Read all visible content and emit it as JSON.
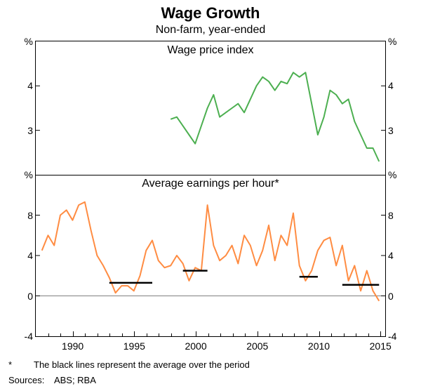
{
  "title": "Wage Growth",
  "subtitle": "Non-farm, year-ended",
  "footnote_marker": "*",
  "footnote_text": "The black lines represent the average over the period",
  "sources_label": "Sources:",
  "sources_value": "ABS; RBA",
  "x_axis": {
    "min": 1987,
    "max": 2015.5,
    "ticks": [
      1990,
      1995,
      2000,
      2005,
      2010,
      2015
    ]
  },
  "panels": {
    "top": {
      "title": "Wage price index",
      "unit": "%",
      "ylim": [
        2,
        5
      ],
      "yticks": [
        3,
        4
      ],
      "series": {
        "color": "#4caf50",
        "width": 2,
        "points": [
          [
            1998.0,
            3.25
          ],
          [
            1998.5,
            3.3
          ],
          [
            1999.0,
            3.1
          ],
          [
            1999.5,
            2.9
          ],
          [
            2000.0,
            2.7
          ],
          [
            2000.5,
            3.1
          ],
          [
            2001.0,
            3.5
          ],
          [
            2001.5,
            3.8
          ],
          [
            2002.0,
            3.3
          ],
          [
            2002.5,
            3.4
          ],
          [
            2003.0,
            3.5
          ],
          [
            2003.5,
            3.6
          ],
          [
            2004.0,
            3.4
          ],
          [
            2004.5,
            3.7
          ],
          [
            2005.0,
            4.0
          ],
          [
            2005.5,
            4.2
          ],
          [
            2006.0,
            4.1
          ],
          [
            2006.5,
            3.9
          ],
          [
            2007.0,
            4.1
          ],
          [
            2007.5,
            4.05
          ],
          [
            2008.0,
            4.3
          ],
          [
            2008.5,
            4.2
          ],
          [
            2009.0,
            4.3
          ],
          [
            2009.5,
            3.6
          ],
          [
            2010.0,
            2.9
          ],
          [
            2010.5,
            3.3
          ],
          [
            2011.0,
            3.9
          ],
          [
            2011.5,
            3.8
          ],
          [
            2012.0,
            3.6
          ],
          [
            2012.5,
            3.7
          ],
          [
            2013.0,
            3.2
          ],
          [
            2013.5,
            2.9
          ],
          [
            2014.0,
            2.6
          ],
          [
            2014.5,
            2.6
          ],
          [
            2015.0,
            2.3
          ]
        ]
      }
    },
    "bottom": {
      "title": "Average earnings per hour*",
      "unit": "%",
      "ylim": [
        -4,
        12
      ],
      "yticks": [
        0,
        4,
        8
      ],
      "series": {
        "color": "#ff8c42",
        "width": 2,
        "points": [
          [
            1987.5,
            4.5
          ],
          [
            1988.0,
            6.0
          ],
          [
            1988.5,
            5.0
          ],
          [
            1989.0,
            8.0
          ],
          [
            1989.5,
            8.5
          ],
          [
            1990.0,
            7.5
          ],
          [
            1990.5,
            9.0
          ],
          [
            1991.0,
            9.3
          ],
          [
            1991.5,
            6.5
          ],
          [
            1992.0,
            4.0
          ],
          [
            1992.5,
            3.0
          ],
          [
            1993.0,
            1.8
          ],
          [
            1993.5,
            0.3
          ],
          [
            1994.0,
            1.0
          ],
          [
            1994.5,
            1.0
          ],
          [
            1995.0,
            0.5
          ],
          [
            1995.5,
            2.0
          ],
          [
            1996.0,
            4.5
          ],
          [
            1996.5,
            5.5
          ],
          [
            1997.0,
            3.5
          ],
          [
            1997.5,
            2.8
          ],
          [
            1998.0,
            3.0
          ],
          [
            1998.5,
            4.0
          ],
          [
            1999.0,
            3.2
          ],
          [
            1999.5,
            1.5
          ],
          [
            2000.0,
            2.8
          ],
          [
            2000.5,
            2.5
          ],
          [
            2001.0,
            9.0
          ],
          [
            2001.5,
            5.0
          ],
          [
            2002.0,
            3.5
          ],
          [
            2002.5,
            4.0
          ],
          [
            2003.0,
            5.0
          ],
          [
            2003.5,
            3.2
          ],
          [
            2004.0,
            6.0
          ],
          [
            2004.5,
            5.0
          ],
          [
            2005.0,
            3.0
          ],
          [
            2005.5,
            4.5
          ],
          [
            2006.0,
            7.0
          ],
          [
            2006.5,
            3.5
          ],
          [
            2007.0,
            6.0
          ],
          [
            2007.5,
            5.0
          ],
          [
            2008.0,
            8.2
          ],
          [
            2008.5,
            3.0
          ],
          [
            2009.0,
            1.5
          ],
          [
            2009.5,
            2.5
          ],
          [
            2010.0,
            4.5
          ],
          [
            2010.5,
            5.5
          ],
          [
            2011.0,
            5.8
          ],
          [
            2011.5,
            3.0
          ],
          [
            2012.0,
            5.0
          ],
          [
            2012.5,
            1.5
          ],
          [
            2013.0,
            3.0
          ],
          [
            2013.5,
            0.5
          ],
          [
            2014.0,
            2.5
          ],
          [
            2014.5,
            0.5
          ],
          [
            2015.0,
            -0.5
          ]
        ]
      },
      "avg_lines": {
        "color": "#000000",
        "width": 2.5,
        "segments": [
          {
            "x1": 1993,
            "x2": 1996.5,
            "y": 1.3
          },
          {
            "x1": 1999,
            "x2": 2001,
            "y": 2.5
          },
          {
            "x1": 2008.5,
            "x2": 2010,
            "y": 1.9
          },
          {
            "x1": 2012,
            "x2": 2015,
            "y": 1.1
          }
        ]
      }
    }
  }
}
